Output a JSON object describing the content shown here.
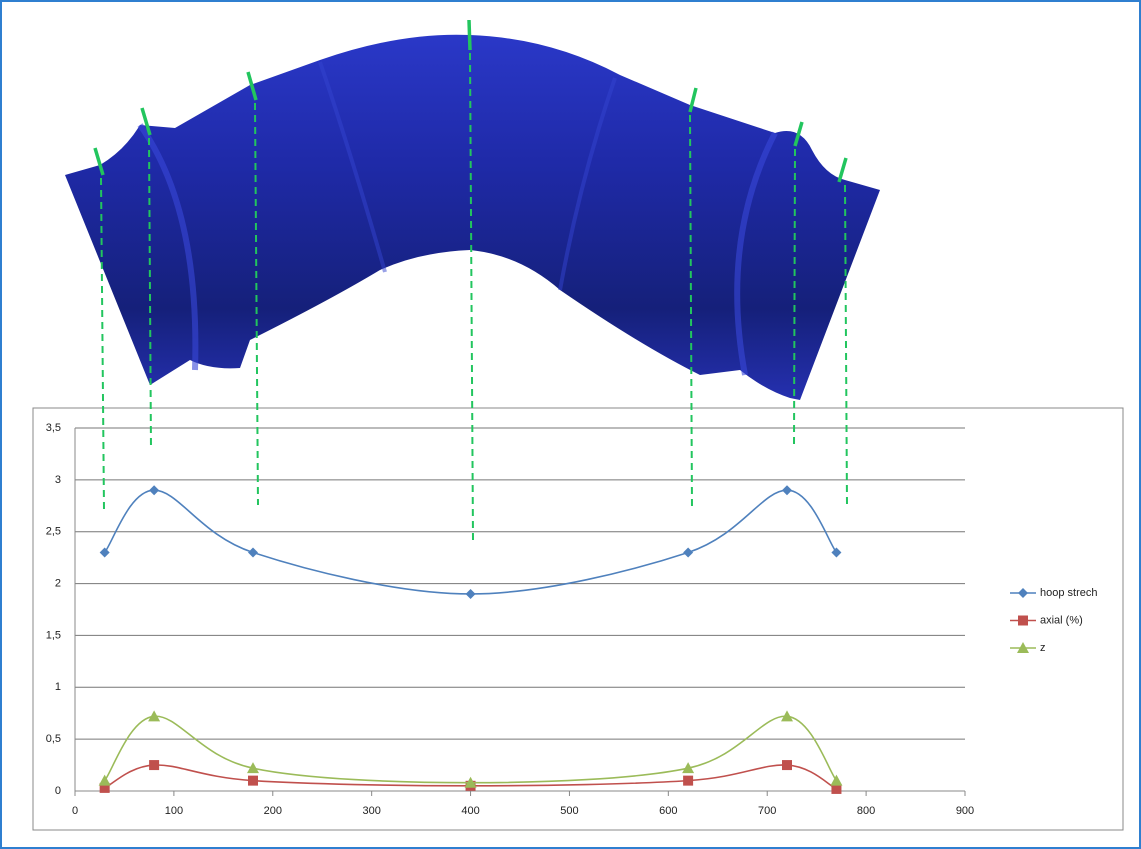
{
  "chart_data": {
    "type": "line",
    "x": [
      30,
      80,
      180,
      400,
      620,
      720,
      770
    ],
    "series": [
      {
        "name": "hoop strech",
        "color": "#4f81bd",
        "marker": "diamond",
        "values": [
          2.3,
          2.9,
          2.3,
          1.9,
          2.3,
          2.9,
          2.3
        ]
      },
      {
        "name": "axial (%)",
        "color": "#c0504d",
        "marker": "square",
        "values": [
          0.03,
          0.25,
          0.1,
          0.05,
          0.1,
          0.25,
          0.02
        ]
      },
      {
        "name": "z",
        "color": "#9bbb59",
        "marker": "triangle",
        "values": [
          0.1,
          0.72,
          0.22,
          0.08,
          0.22,
          0.72,
          0.1
        ]
      }
    ],
    "xlim": [
      0,
      900
    ],
    "xticks": [
      0,
      100,
      200,
      300,
      400,
      500,
      600,
      700,
      800,
      900
    ],
    "ylim": [
      0,
      3.5
    ],
    "yticks": [
      0,
      {
        "value": 0.5,
        "label": "0,5"
      },
      1,
      {
        "value": 1.5,
        "label": "1,5"
      },
      2,
      {
        "value": 2.5,
        "label": "2,5"
      },
      3,
      {
        "value": 3.5,
        "label": "3,5"
      }
    ],
    "grid": true,
    "smooth": true,
    "legend": "right"
  }
}
